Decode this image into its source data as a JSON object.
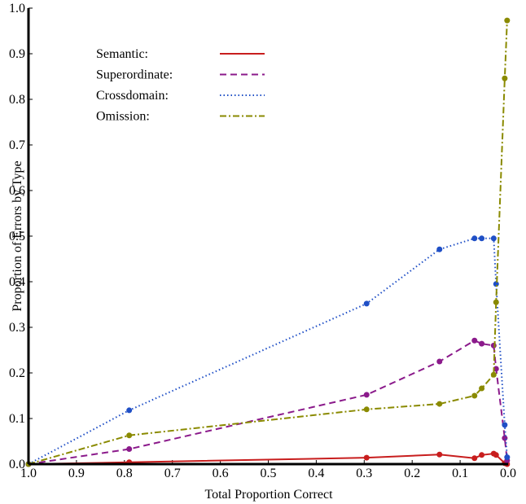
{
  "chart_data": {
    "type": "line",
    "xlabel": "Total Proportion Correct",
    "ylabel": "Proportion of Errors by Type",
    "x": [
      1.0,
      0.79,
      0.295,
      0.143,
      0.07,
      0.055,
      0.03,
      0.025,
      0.007,
      0.002
    ],
    "xlim": [
      1.0,
      0.0
    ],
    "xticks": [
      {
        "value": 1.0,
        "label": "1.0"
      },
      0.9,
      0.8,
      0.7,
      0.6,
      0.5,
      0.4,
      0.3,
      0.2,
      0.1,
      {
        "value": 0.0,
        "label": "0.0"
      }
    ],
    "ylim": [
      0.0,
      1.0
    ],
    "yticks": [
      {
        "value": 0.0,
        "label": "0.0"
      },
      0.1,
      0.2,
      0.3,
      0.4,
      0.5,
      0.6,
      0.7,
      0.8,
      0.9,
      {
        "value": 1.0,
        "label": "1.0"
      }
    ],
    "legend": "upper left",
    "series": [
      {
        "name": "Semantic:",
        "color": "#c81e1e",
        "linestyle": "solid",
        "values": [
          0.0,
          0.004,
          0.014,
          0.021,
          0.013,
          0.02,
          0.023,
          0.02,
          0.002,
          0.0
        ]
      },
      {
        "name": "Superordinate:",
        "color": "#8b1a8b",
        "linestyle": "dashed",
        "values": [
          0.0,
          0.033,
          0.152,
          0.225,
          0.271,
          0.264,
          0.26,
          0.209,
          0.057,
          0.008
        ]
      },
      {
        "name": "Crossdomain:",
        "color": "#1f4fc6",
        "linestyle": "dotted",
        "values": [
          0.0,
          0.118,
          0.352,
          0.471,
          0.495,
          0.495,
          0.495,
          0.395,
          0.086,
          0.015
        ]
      },
      {
        "name": "Omission:",
        "color": "#8a8a00",
        "linestyle": "dashdot",
        "values": [
          0.0,
          0.063,
          0.12,
          0.132,
          0.15,
          0.166,
          0.196,
          0.355,
          0.846,
          0.973
        ]
      }
    ]
  }
}
